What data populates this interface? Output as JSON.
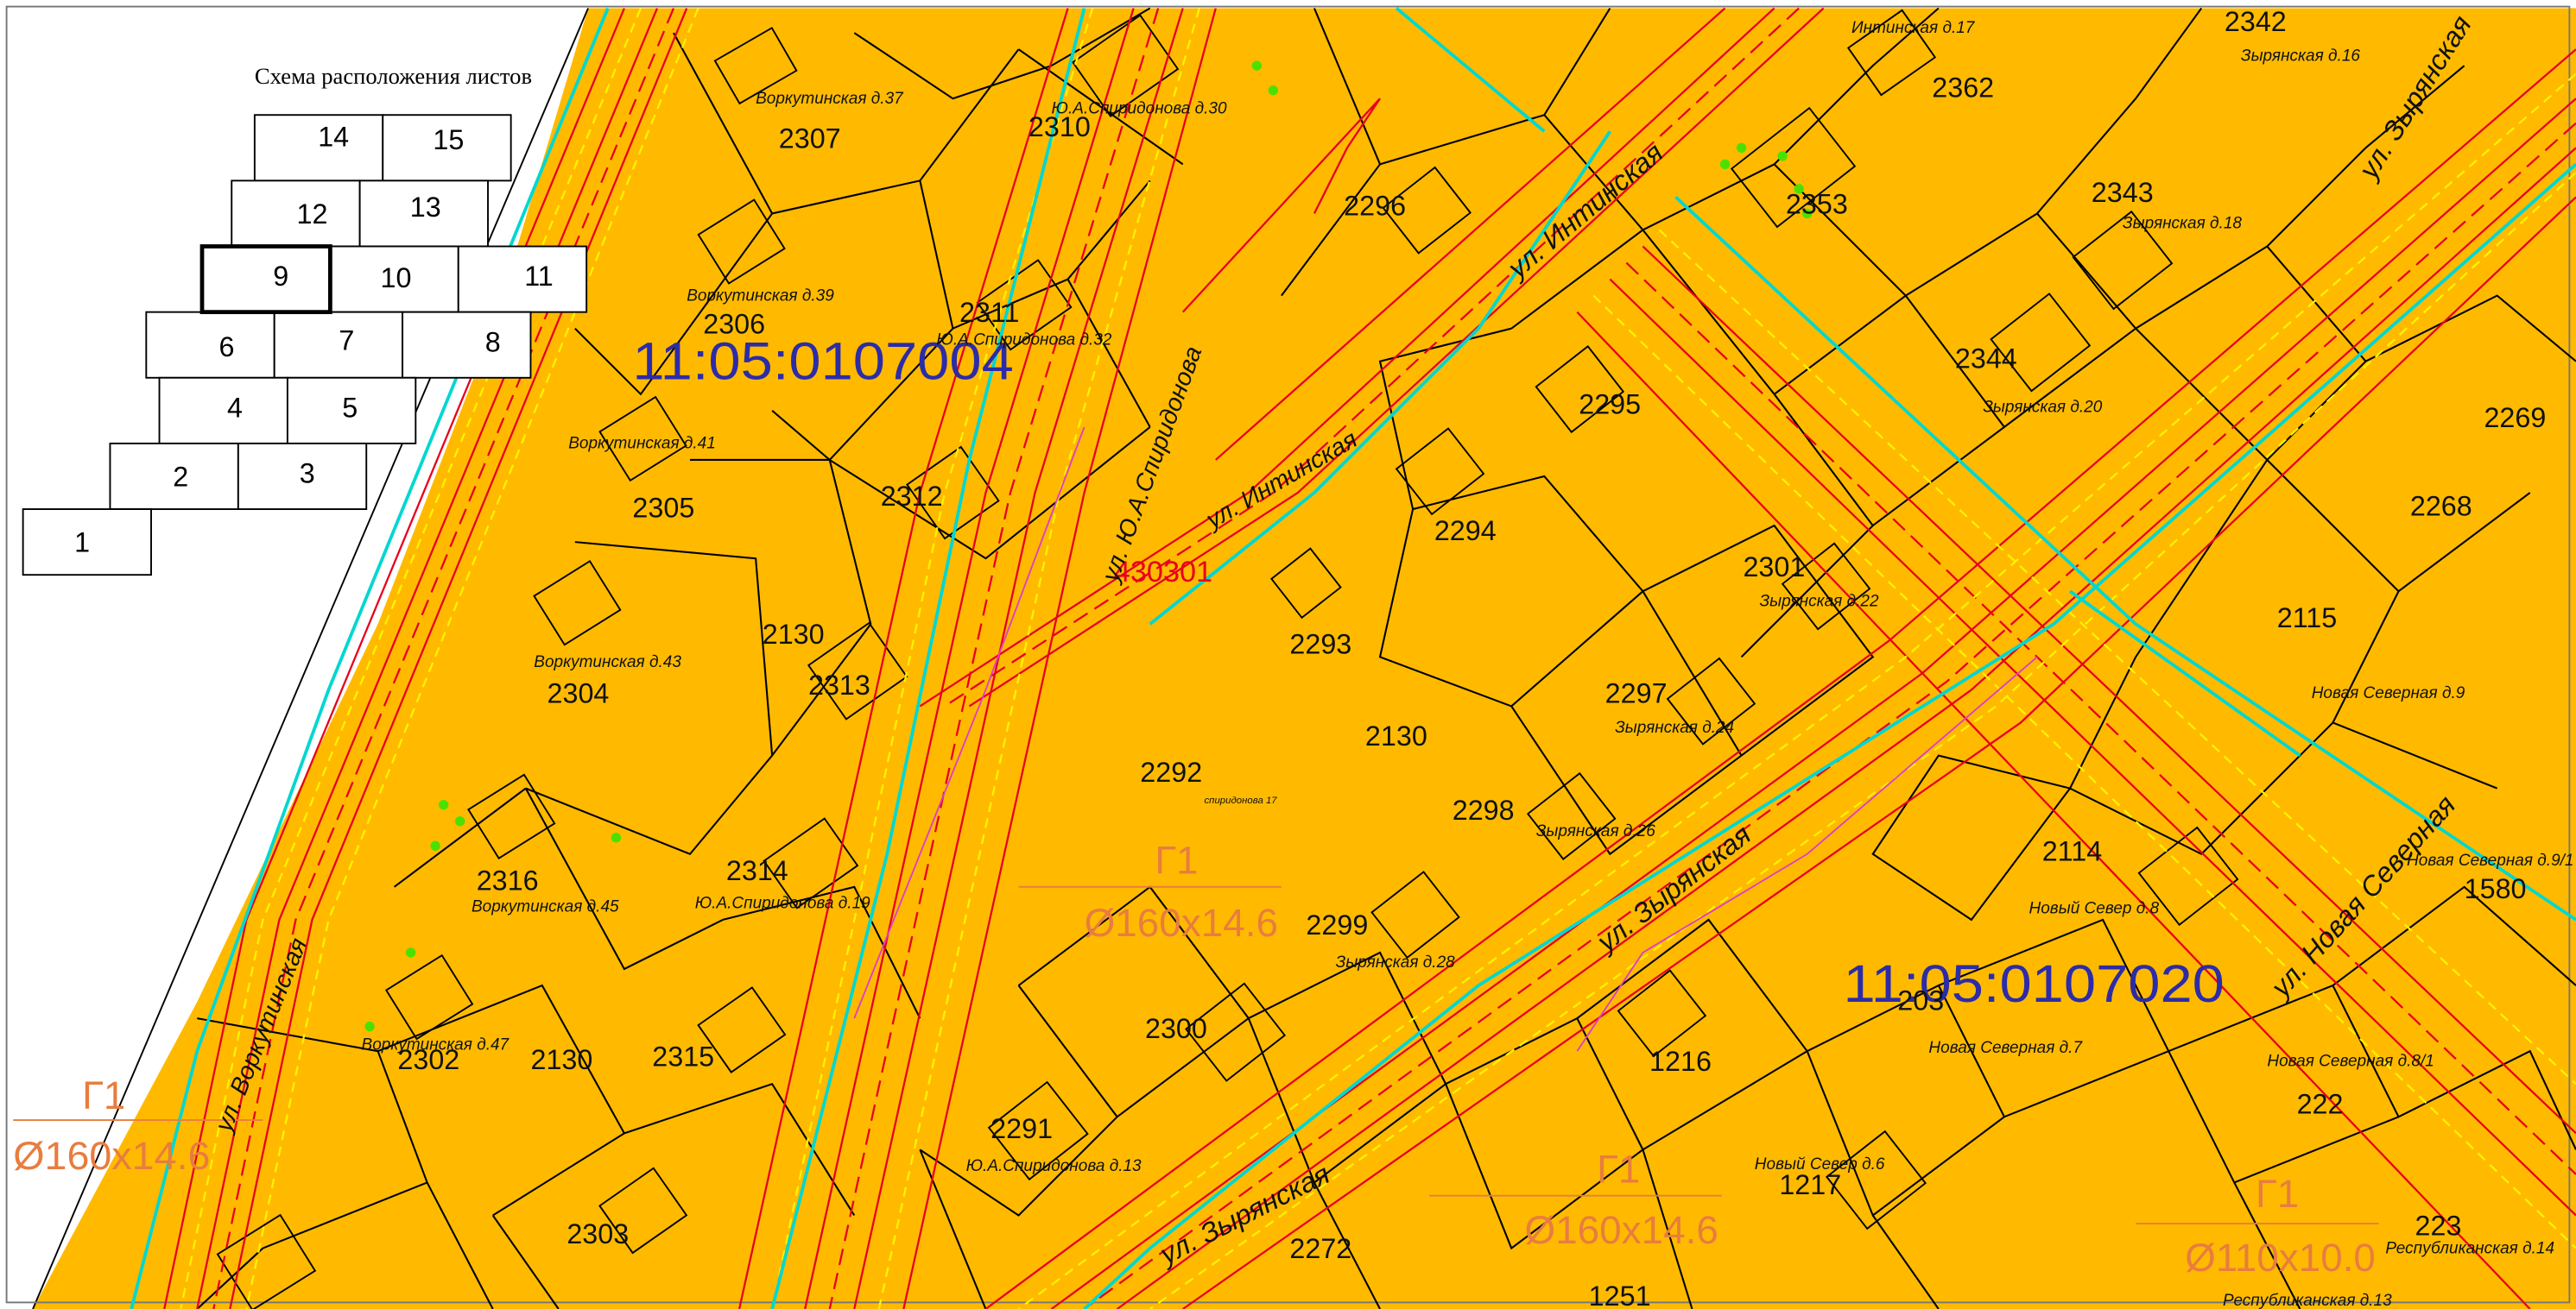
{
  "scheme": {
    "title": "Схема расположения листов",
    "sheets": [
      "1",
      "2",
      "3",
      "4",
      "5",
      "6",
      "7",
      "8",
      "9",
      "10",
      "11",
      "12",
      "13",
      "14",
      "15"
    ],
    "highlighted": "9"
  },
  "cadastral_blocks": [
    "11:05:0107004",
    "11:05:0107020"
  ],
  "project_code": "430301",
  "pipes": [
    {
      "label": "Г1",
      "spec": "Ø160x14.6"
    },
    {
      "label": "Г1",
      "spec": "Ø160x14.6"
    },
    {
      "label": "Г1",
      "spec": "Ø160x14.6"
    },
    {
      "label": "Г1",
      "spec": "Ø110x10.0"
    }
  ],
  "streets": [
    "ул. Воркутинская",
    "ул. Интинская",
    "ул. Интинская",
    "ул. Ю.А.Спиридонова",
    "ул. Зырянская",
    "ул. Зырянская",
    "ул. Зырянская",
    "ул. Новая Северная"
  ],
  "parcels": [
    "2307",
    "2310",
    "2362",
    "2342",
    "2343",
    "2296",
    "2353",
    "2306",
    "2311",
    "2344",
    "2295",
    "2269",
    "2268",
    "2305",
    "2312",
    "2294",
    "2301",
    "2115",
    "2130",
    "2293",
    "2304",
    "2313",
    "2297",
    "2130",
    "2298",
    "2292",
    "2316",
    "2314",
    "2299",
    "2114",
    "1580",
    "203",
    "2300",
    "2302",
    "2130",
    "2315",
    "1216",
    "222",
    "2291",
    "1217",
    "2303",
    "2272",
    "1251",
    "223"
  ],
  "addresses": [
    "Воркутинская д.37",
    "Ю.А.Спиридонова д.30",
    "Интинская д.17",
    "Зырянская д.16",
    "Зырянская д.18",
    "Воркутинская д.39",
    "Ю.А.Спиридонова д.32",
    "Зырянская д.20",
    "Воркутинская д.41",
    "Зырянская д.22",
    "Воркутинская д.43",
    "Зырянская д.24",
    "Новая Северная д.9",
    "Зырянская д.26",
    "Воркутинская д.45",
    "Ю.А.Спиридонова д.19",
    "Новый Север д.8",
    "Новая Северная д.9/1",
    "Зырянская д.28",
    "Воркутинская д.47",
    "Новая Северная д.7",
    "Новая Северная д.8/1",
    "Ю.А.Спиридонова д.13",
    "Новый Север д.6",
    "Республиканская д.14",
    "Республиканская д.13",
    "спиридонова 17"
  ],
  "colors": {
    "parcel_fill": "#FFBA00",
    "parcel_line": "#000000",
    "road_red": "#E8001C",
    "utility_cyan": "#00D7D0",
    "dashed_yellow": "#FFF200",
    "block_label": "#2C2CA8",
    "pipe_label": "#E87D3E",
    "vegetation_green": "#4CE000"
  }
}
